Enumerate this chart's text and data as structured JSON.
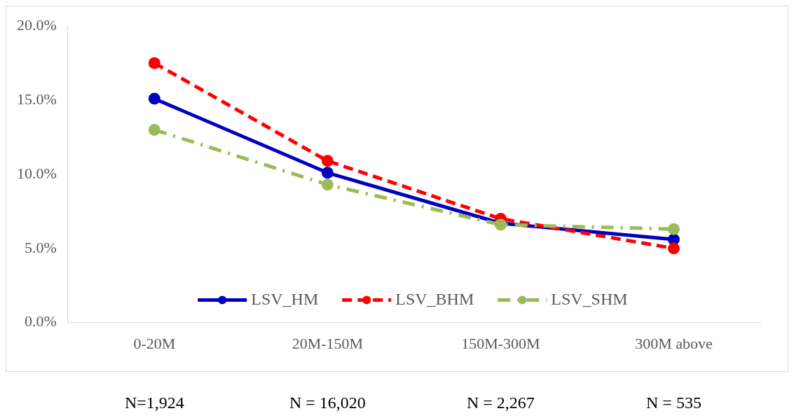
{
  "chart_data": {
    "type": "line",
    "categories": [
      "0-20M",
      "20M-150M",
      "150M-300M",
      "300M above"
    ],
    "series": [
      {
        "name": "LSV_HM",
        "color": "#0000c0",
        "line_style": "solid",
        "values": [
          15.1,
          10.1,
          6.7,
          5.6
        ]
      },
      {
        "name": "LSV_BHM",
        "color": "#ff0000",
        "line_style": "dashed",
        "values": [
          17.5,
          10.9,
          7.0,
          5.0
        ]
      },
      {
        "name": "LSV_SHM",
        "color": "#9bbb59",
        "line_style": "dotted",
        "values": [
          13.0,
          9.3,
          6.6,
          6.3
        ]
      }
    ],
    "ylim": [
      0,
      20
    ],
    "yticks": [
      {
        "value": 0,
        "label": "0.0%"
      },
      {
        "value": 5,
        "label": "5.0%"
      },
      {
        "value": 10,
        "label": "10.0%"
      },
      {
        "value": 15,
        "label": "15.0%"
      },
      {
        "value": 20,
        "label": "20.0%"
      }
    ],
    "grid": false,
    "legend": "bottom",
    "marker": "circle",
    "annotations": [
      "N=1,924",
      "N = 16,020",
      "N = 2,267",
      "N = 535"
    ]
  }
}
